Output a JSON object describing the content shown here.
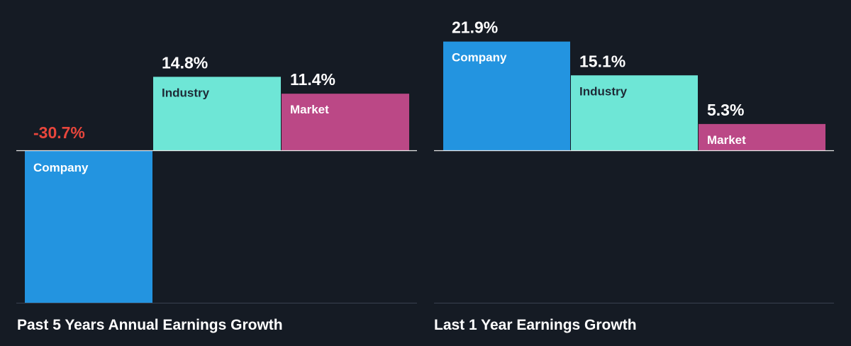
{
  "chart_data": [
    {
      "type": "bar",
      "title": "Past 5 Years Annual Earnings Growth",
      "categories": [
        "Company",
        "Industry",
        "Market"
      ],
      "values": [
        -30.7,
        14.8,
        11.4
      ],
      "value_labels": [
        "-30.7%",
        "14.8%",
        "11.4%"
      ],
      "unit": "%"
    },
    {
      "type": "bar",
      "title": "Last 1 Year Earnings Growth",
      "categories": [
        "Company",
        "Industry",
        "Market"
      ],
      "values": [
        21.9,
        15.1,
        5.3
      ],
      "value_labels": [
        "21.9%",
        "15.1%",
        "5.3%"
      ],
      "unit": "%"
    }
  ],
  "colors": {
    "background": "#151b24",
    "company": "#2394e0",
    "industry": "#6ee6d6",
    "market": "#bb4886",
    "positive_text": "#ffffff",
    "negative_text": "#e8463c",
    "label_on_dark_bar": "#ffffff",
    "label_on_light_bar": "#1e2a36",
    "axis_line": "#e6e6e6",
    "baseline_line": "#3a4150"
  }
}
